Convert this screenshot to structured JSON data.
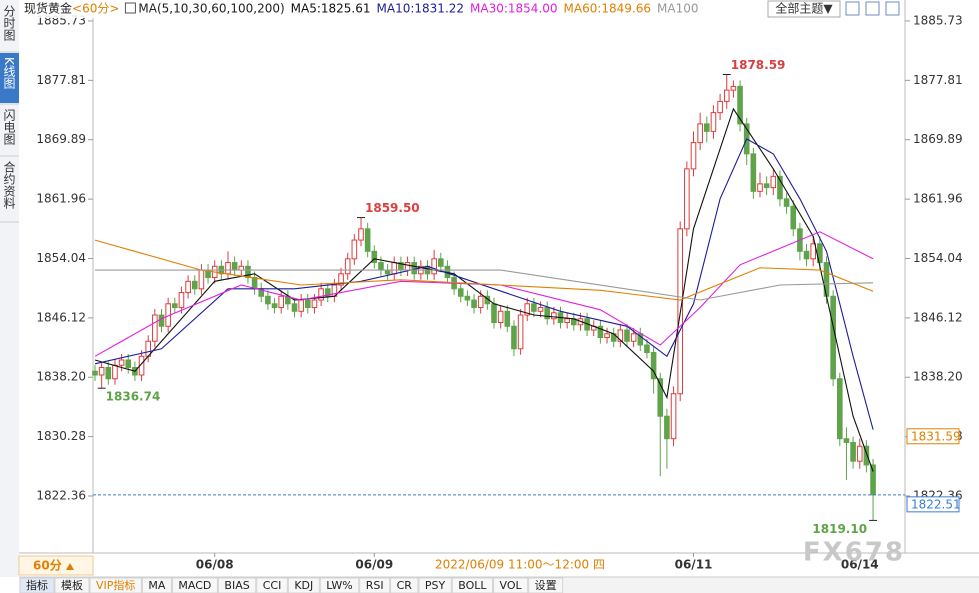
{
  "chart_data": {
    "type": "candlestick",
    "symbol": "现货黄金",
    "period": "<60分>",
    "ma_title": "MA(5,10,30,60,100,200)",
    "theme_button": "全部主题▼",
    "watermark": "FX678",
    "period_button": "60分",
    "crosshair_label": "2022/06/09 11:00～12:00 四",
    "side_tabs": [
      "分时图",
      "K线图",
      "闪电图",
      "合约资料"
    ],
    "toolbar": [
      "指标",
      "模板",
      "VIP指标",
      "MA",
      "MACD",
      "BIAS",
      "CCI",
      "KDJ",
      "LW%",
      "RSI",
      "CR",
      "PSY",
      "BOLL",
      "VOL",
      "设置"
    ],
    "up_color": "#e03c3c",
    "down_color": "#5fa34a",
    "ylim": [
      1815.42,
      1887.86
    ],
    "yticks": [
      1822.36,
      1830.28,
      {
        "value": 1838.2,
        "label": "1838.20"
      },
      1846.12,
      1854.04,
      1861.96,
      1869.89,
      1877.81,
      1885.73
    ],
    "xticks": [
      {
        "index": 18,
        "label": "06/08"
      },
      {
        "index": 42,
        "label": "06/09"
      },
      {
        "index": 90,
        "label": "06/11"
      },
      {
        "index": 115,
        "label": "06/14"
      }
    ],
    "candles": [
      [
        1839.0,
        1839.8,
        1837.7,
        1838.5
      ],
      [
        1838.5,
        1840.3,
        1836.74,
        1839.5
      ],
      [
        1839.5,
        1840.3,
        1837.2,
        1838.0
      ],
      [
        1838.0,
        1840.6,
        1837.2,
        1839.8
      ],
      [
        1839.8,
        1841.3,
        1839.0,
        1840.5
      ],
      [
        1840.5,
        1841.3,
        1838.7,
        1839.5
      ],
      [
        1839.5,
        1840.3,
        1837.7,
        1838.5
      ],
      [
        1838.5,
        1841.8,
        1837.7,
        1841.0
      ],
      [
        1841.0,
        1843.8,
        1840.2,
        1843.0
      ],
      [
        1843.0,
        1847.3,
        1842.2,
        1846.5
      ],
      [
        1846.5,
        1847.3,
        1844.2,
        1845.0
      ],
      [
        1845.0,
        1848.8,
        1844.2,
        1848.0
      ],
      [
        1848.0,
        1848.8,
        1846.7,
        1847.5
      ],
      [
        1847.5,
        1850.3,
        1846.7,
        1849.5
      ],
      [
        1849.5,
        1851.8,
        1848.7,
        1851.0
      ],
      [
        1851.0,
        1851.8,
        1849.2,
        1850.0
      ],
      [
        1850.0,
        1853.3,
        1849.2,
        1852.5
      ],
      [
        1852.5,
        1853.3,
        1850.7,
        1851.5
      ],
      [
        1851.5,
        1853.8,
        1850.7,
        1853.0
      ],
      [
        1853.0,
        1853.8,
        1851.2,
        1852.0
      ],
      [
        1852.0,
        1855.0,
        1851.2,
        1853.5
      ],
      [
        1853.5,
        1854.3,
        1851.7,
        1852.5
      ],
      [
        1852.5,
        1853.8,
        1851.7,
        1853.0
      ],
      [
        1853.0,
        1853.8,
        1850.7,
        1851.5
      ],
      [
        1851.5,
        1852.3,
        1849.2,
        1850.0
      ],
      [
        1850.0,
        1850.8,
        1848.2,
        1849.0
      ],
      [
        1849.0,
        1849.8,
        1847.2,
        1848.0
      ],
      [
        1848.0,
        1848.8,
        1846.7,
        1847.5
      ],
      [
        1847.5,
        1849.8,
        1846.7,
        1849.0
      ],
      [
        1849.0,
        1849.8,
        1847.2,
        1848.0
      ],
      [
        1848.0,
        1848.8,
        1846.2,
        1847.0
      ],
      [
        1847.0,
        1849.3,
        1846.2,
        1848.5
      ],
      [
        1848.5,
        1849.3,
        1846.7,
        1847.5
      ],
      [
        1847.5,
        1849.3,
        1846.7,
        1848.5
      ],
      [
        1848.5,
        1850.8,
        1847.7,
        1850.0
      ],
      [
        1850.0,
        1850.8,
        1848.2,
        1849.0
      ],
      [
        1849.0,
        1851.3,
        1848.2,
        1850.5
      ],
      [
        1850.5,
        1852.8,
        1849.7,
        1852.0
      ],
      [
        1852.0,
        1854.8,
        1851.2,
        1854.0
      ],
      [
        1854.0,
        1857.3,
        1853.2,
        1856.5
      ],
      [
        1856.5,
        1859.5,
        1855.7,
        1858.0
      ],
      [
        1858.0,
        1858.8,
        1854.2,
        1855.0
      ],
      [
        1855.0,
        1855.8,
        1852.7,
        1853.5
      ],
      [
        1853.5,
        1854.3,
        1851.7,
        1852.5
      ],
      [
        1852.5,
        1853.3,
        1851.2,
        1852.0
      ],
      [
        1852.0,
        1854.3,
        1851.2,
        1853.5
      ],
      [
        1853.5,
        1854.3,
        1851.7,
        1852.5
      ],
      [
        1852.5,
        1854.3,
        1851.7,
        1853.5
      ],
      [
        1853.5,
        1854.3,
        1851.2,
        1852.0
      ],
      [
        1852.0,
        1853.8,
        1851.2,
        1853.0
      ],
      [
        1853.0,
        1853.8,
        1851.2,
        1852.0
      ],
      [
        1852.0,
        1855.2,
        1851.2,
        1854.0
      ],
      [
        1854.0,
        1854.8,
        1852.2,
        1853.0
      ],
      [
        1853.0,
        1853.8,
        1850.7,
        1851.5
      ],
      [
        1851.5,
        1852.3,
        1849.2,
        1850.0
      ],
      [
        1850.0,
        1850.8,
        1848.2,
        1849.0
      ],
      [
        1849.0,
        1849.8,
        1847.7,
        1848.5
      ],
      [
        1848.5,
        1849.3,
        1846.7,
        1847.5
      ],
      [
        1847.5,
        1849.8,
        1846.7,
        1849.0
      ],
      [
        1849.0,
        1849.8,
        1847.2,
        1848.0
      ],
      [
        1848.0,
        1848.8,
        1844.7,
        1845.5
      ],
      [
        1845.5,
        1847.8,
        1844.7,
        1847.0
      ],
      [
        1847.0,
        1847.8,
        1844.2,
        1845.0
      ],
      [
        1845.0,
        1845.8,
        1841.0,
        1842.0
      ],
      [
        1842.0,
        1847.3,
        1841.2,
        1846.5
      ],
      [
        1846.5,
        1848.8,
        1845.7,
        1848.0
      ],
      [
        1848.0,
        1848.8,
        1846.2,
        1847.0
      ],
      [
        1847.0,
        1848.3,
        1846.2,
        1847.5
      ],
      [
        1847.5,
        1848.3,
        1845.2,
        1846.0
      ],
      [
        1846.0,
        1847.6,
        1845.2,
        1846.8
      ],
      [
        1846.8,
        1847.6,
        1844.7,
        1845.5
      ],
      [
        1845.5,
        1846.8,
        1844.7,
        1846.0
      ],
      [
        1846.0,
        1846.8,
        1844.4,
        1845.2
      ],
      [
        1845.2,
        1846.8,
        1844.4,
        1846.0
      ],
      [
        1846.0,
        1846.8,
        1843.7,
        1844.5
      ],
      [
        1844.5,
        1845.8,
        1843.7,
        1845.0
      ],
      [
        1845.0,
        1845.8,
        1842.7,
        1843.5
      ],
      [
        1843.5,
        1844.8,
        1842.7,
        1844.0
      ],
      [
        1844.0,
        1844.8,
        1842.2,
        1843.0
      ],
      [
        1843.0,
        1845.3,
        1842.2,
        1844.5
      ],
      [
        1844.5,
        1845.3,
        1842.2,
        1843.0
      ],
      [
        1843.0,
        1844.8,
        1842.2,
        1844.0
      ],
      [
        1844.0,
        1844.8,
        1841.7,
        1842.5
      ],
      [
        1842.5,
        1843.3,
        1840.7,
        1841.5
      ],
      [
        1841.5,
        1842.3,
        1836.0,
        1838.0
      ],
      [
        1838.0,
        1838.8,
        1825.0,
        1833.0
      ],
      [
        1833.0,
        1834.0,
        1826.0,
        1830.0
      ],
      [
        1830.0,
        1837.0,
        1829.0,
        1836.0
      ],
      [
        1836.0,
        1859.0,
        1835.0,
        1858.0
      ],
      [
        1858.0,
        1867.0,
        1857.0,
        1866.0
      ],
      [
        1866.0,
        1871.0,
        1865.0,
        1869.5
      ],
      [
        1869.5,
        1873.5,
        1868.5,
        1872.0
      ],
      [
        1872.0,
        1873.0,
        1869.5,
        1871.0
      ],
      [
        1871.0,
        1874.5,
        1870.0,
        1873.5
      ],
      [
        1873.5,
        1876.0,
        1872.5,
        1875.0
      ],
      [
        1875.0,
        1878.59,
        1874.0,
        1876.5
      ],
      [
        1876.5,
        1877.8,
        1875.5,
        1877.0
      ],
      [
        1877.0,
        1877.8,
        1871.0,
        1872.0
      ],
      [
        1872.0,
        1872.8,
        1866.5,
        1868.0
      ],
      [
        1868.0,
        1868.8,
        1862.0,
        1863.0
      ],
      [
        1863.0,
        1865.5,
        1862.2,
        1864.0
      ],
      [
        1864.0,
        1865.0,
        1862.5,
        1863.5
      ],
      [
        1863.5,
        1866.0,
        1862.5,
        1865.0
      ],
      [
        1865.0,
        1865.8,
        1861.0,
        1862.0
      ],
      [
        1862.0,
        1862.8,
        1860.0,
        1861.0
      ],
      [
        1861.0,
        1861.8,
        1857.0,
        1858.0
      ],
      [
        1858.0,
        1858.8,
        1853.8,
        1855.0
      ],
      [
        1855.0,
        1856.0,
        1853.0,
        1854.0
      ],
      [
        1854.0,
        1857.0,
        1853.0,
        1856.0
      ],
      [
        1856.0,
        1857.0,
        1852.5,
        1853.5
      ],
      [
        1853.5,
        1854.3,
        1848.0,
        1849.0
      ],
      [
        1849.0,
        1849.8,
        1837.0,
        1838.0
      ],
      [
        1838.0,
        1838.8,
        1829.0,
        1830.0
      ],
      [
        1830.0,
        1831.5,
        1824.5,
        1829.5
      ],
      [
        1829.5,
        1830.3,
        1826.0,
        1827.0
      ],
      [
        1827.0,
        1830.0,
        1826.0,
        1829.0
      ],
      [
        1829.0,
        1829.8,
        1825.5,
        1826.5
      ],
      [
        1826.5,
        1827.3,
        1819.1,
        1822.51
      ]
    ],
    "series": [
      {
        "name": "MA5:1825.61",
        "color": "#111111",
        "x": [
          0,
          6,
          12,
          18,
          24,
          30,
          36,
          42,
          48,
          54,
          60,
          66,
          72,
          78,
          84,
          86,
          90,
          96,
          102,
          108,
          114,
          117
        ],
        "values": [
          1840.5,
          1839,
          1845,
          1851,
          1852,
          1848.5,
          1849,
          1854,
          1853,
          1852,
          1848,
          1846.5,
          1846,
          1844,
          1839,
          1835.5,
          1858,
          1874,
          1866,
          1857,
          1833,
          1825.61
        ]
      },
      {
        "name": "MA10:1831.22",
        "color": "#1c1c9a",
        "x": [
          0,
          10,
          20,
          30,
          40,
          50,
          60,
          70,
          80,
          86,
          90,
          94,
          98,
          102,
          106,
          110,
          114,
          117
        ],
        "values": [
          1840,
          1842,
          1850,
          1850,
          1851,
          1853,
          1850,
          1847,
          1845,
          1841,
          1848,
          1862,
          1870,
          1868,
          1862,
          1855,
          1841,
          1831.22
        ]
      },
      {
        "name": "MA30:1854.00",
        "color": "#e020e0",
        "x": [
          0,
          10,
          22,
          31,
          46,
          61,
          76,
          85,
          91,
          97,
          109,
          117
        ],
        "values": [
          1841,
          1846,
          1850.5,
          1848.5,
          1851,
          1850.5,
          1847.2,
          1842.5,
          1847.5,
          1853.2,
          1857.6,
          1854.0
        ]
      },
      {
        "name": "MA60:1849.66",
        "color": "#e08000",
        "x": [
          0,
          16,
          31,
          46,
          61,
          76,
          88,
          100,
          109,
          117
        ],
        "values": [
          1856.5,
          1852.5,
          1850.5,
          1851.2,
          1850.5,
          1849.8,
          1848.5,
          1852.8,
          1852.5,
          1849.66
        ]
      },
      {
        "name": "MA100",
        "color": "#999999",
        "x": [
          0,
          61,
          91,
          103,
          117
        ],
        "values": [
          1852.5,
          1852.5,
          1848.5,
          1850.5,
          1850.8
        ]
      }
    ],
    "extremes": [
      {
        "candle": 95,
        "value": 1878.59
      },
      {
        "candle": 40,
        "value": 1859.5,
        "label": "1859.50"
      },
      {
        "candle": 1,
        "value": 1836.74
      },
      {
        "candle": 117,
        "value": 1819.1,
        "label": "1819.10"
      }
    ],
    "price_tags": [
      {
        "value": 1831.59,
        "color": "#e08000"
      },
      {
        "value": 1822.51,
        "color": "#3a7bd5"
      }
    ]
  }
}
